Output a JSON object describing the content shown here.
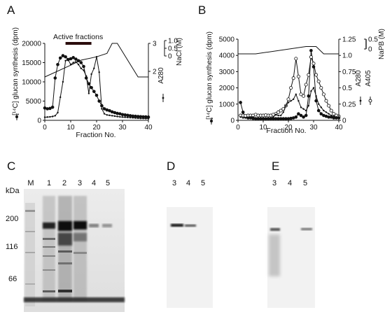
{
  "panels": {
    "A": "A",
    "B": "B",
    "C": "C",
    "D": "D",
    "E": "E"
  },
  "chart_data": [
    {
      "type": "line",
      "panel": "A",
      "xlabel": "Fraction No.",
      "ylabel_left": "[¹⁴C] glucan synthesis (dpm)",
      "ylabel_right_inner": "A280",
      "ylabel_right_outer": "NaCl (M)",
      "annotation": "Active fractions",
      "active_range": [
        8,
        18
      ],
      "xlim": [
        0,
        40
      ],
      "ylim": [
        0,
        20000
      ],
      "x_ticks": [
        0,
        10,
        20,
        30,
        40
      ],
      "y_ticks": [
        0,
        5000,
        10000,
        15000,
        20000
      ],
      "y_tick_labels": [
        "0",
        "5000",
        "10000",
        "15000",
        "20000"
      ],
      "a280_ticks": [
        2,
        3
      ],
      "a280_range": [
        1.55,
        3.0
      ],
      "nacl_ticks": [
        "0",
        "0.5",
        "1.0"
      ],
      "nacl_range": [
        0,
        1.0
      ],
      "series": [
        {
          "marker": "filled-circle",
          "x": [
            0,
            1,
            2,
            3,
            4,
            5,
            6,
            7,
            8,
            9,
            10,
            11,
            12,
            13,
            14,
            15,
            16,
            17,
            18,
            19,
            20,
            21,
            22,
            23,
            24,
            25,
            26,
            27,
            28,
            29,
            30,
            31,
            32,
            33,
            34,
            35,
            36,
            37,
            38,
            39,
            40
          ],
          "values": [
            3200,
            3000,
            3100,
            3400,
            11000,
            14500,
            16200,
            16800,
            16500,
            15800,
            16000,
            16300,
            15900,
            15500,
            15000,
            14000,
            11000,
            9500,
            8500,
            7500,
            6500,
            5000,
            3800,
            3000,
            2700,
            2500,
            2200,
            2000,
            1800,
            1700,
            1500,
            1400,
            1300,
            1200,
            1100,
            1050,
            1000,
            950,
            900,
            900,
            850
          ]
        },
        {
          "marker": "small-dot",
          "x": [
            0,
            1,
            2,
            3,
            4,
            5,
            6,
            7,
            8,
            9,
            10,
            11,
            12,
            13,
            14,
            15,
            16,
            17,
            18,
            19,
            20,
            21,
            22,
            23,
            24,
            25,
            26,
            27,
            28,
            29,
            30,
            31,
            32,
            33,
            34,
            35,
            36,
            37,
            38,
            39,
            40
          ],
          "values": [
            800,
            850,
            900,
            1000,
            1200,
            2000,
            6000,
            10000,
            15500,
            15800,
            14500,
            15000,
            15200,
            14500,
            13500,
            13000,
            11500,
            7000,
            12000,
            13500,
            16500,
            12500,
            3000,
            1700,
            1400,
            1300,
            1200,
            1100,
            1000,
            900,
            850,
            800,
            750,
            700,
            650,
            600,
            550,
            500,
            480,
            450,
            430
          ]
        }
      ],
      "gradient": {
        "x": [
          0,
          10,
          14,
          20,
          24,
          26,
          28,
          36,
          40
        ],
        "values": [
          0.0,
          0.35,
          0.5,
          0.6,
          0.7,
          1.0,
          1.0,
          0.0,
          0.0
        ]
      }
    },
    {
      "type": "line",
      "panel": "B",
      "xlabel": "Fraction No.",
      "ylabel_left": "[¹⁴C] glucan synthesis (dpm)",
      "ylabel_right_inner": "A280",
      "ylabel_right_outer": "A405",
      "ylabel_right_far": "NaPB (M)",
      "xlim": [
        0,
        40
      ],
      "ylim": [
        0,
        5000
      ],
      "x_ticks": [
        0,
        10,
        20,
        30,
        40
      ],
      "y_ticks": [
        0,
        1000,
        2000,
        3000,
        4000,
        5000
      ],
      "y_tick_labels": [
        "0",
        "1000",
        "2000",
        "3000",
        "4000",
        "5000"
      ],
      "abs_ticks": [
        "0",
        "0.25",
        "0.5",
        "0.75",
        "1.0",
        "1.25"
      ],
      "abs_range": [
        0,
        1.25
      ],
      "napb_ticks": [
        "0",
        "0.5"
      ],
      "napb_range": [
        0,
        0.5
      ],
      "series": [
        {
          "marker": "filled-circle",
          "x": [
            1,
            2,
            3,
            4,
            5,
            6,
            7,
            8,
            9,
            10,
            11,
            12,
            13,
            14,
            15,
            16,
            17,
            18,
            19,
            20,
            21,
            22,
            23,
            24,
            25,
            26,
            27,
            28,
            29,
            30,
            31,
            32,
            33,
            34,
            35,
            36,
            37,
            38,
            39,
            40
          ],
          "values": [
            1100,
            500,
            200,
            150,
            150,
            120,
            100,
            100,
            100,
            100,
            100,
            100,
            100,
            100,
            100,
            100,
            100,
            100,
            100,
            100,
            120,
            150,
            200,
            400,
            300,
            200,
            300,
            1500,
            4300,
            3300,
            1200,
            600,
            400,
            300,
            250,
            200,
            200,
            150,
            150,
            150
          ]
        },
        {
          "marker": "open-circle",
          "x": [
            1,
            2,
            3,
            4,
            5,
            6,
            7,
            8,
            9,
            10,
            11,
            12,
            13,
            14,
            15,
            16,
            17,
            18,
            19,
            20,
            21,
            22,
            23,
            24,
            25,
            26,
            27,
            28,
            29,
            30,
            31,
            32,
            33,
            34,
            35,
            36,
            37,
            38,
            39,
            40
          ],
          "values": [
            300,
            300,
            280,
            300,
            300,
            300,
            350,
            300,
            300,
            300,
            320,
            300,
            300,
            350,
            400,
            500,
            600,
            700,
            900,
            1300,
            2000,
            2600,
            3800,
            2700,
            1600,
            1500,
            2200,
            2800,
            3900,
            3500,
            2800,
            2400,
            2000,
            1600,
            1200,
            900,
            600,
            400,
            300,
            250
          ]
        },
        {
          "marker": "small-dot",
          "x": [
            1,
            2,
            3,
            4,
            5,
            6,
            7,
            8,
            9,
            10,
            11,
            12,
            13,
            14,
            15,
            16,
            17,
            18,
            19,
            20,
            21,
            22,
            23,
            24,
            25,
            26,
            27,
            28,
            29,
            30,
            31,
            32,
            33,
            34,
            35,
            36,
            37,
            38,
            39,
            40
          ],
          "values": [
            200,
            150,
            150,
            150,
            200,
            200,
            150,
            150,
            150,
            150,
            150,
            150,
            150,
            200,
            350,
            300,
            300,
            500,
            900,
            1100,
            1200,
            1300,
            1600,
            1200,
            800,
            700,
            600,
            900,
            1800,
            2000,
            1500,
            1000,
            800,
            600,
            500,
            400,
            300,
            250,
            200,
            200
          ]
        }
      ],
      "gradient": {
        "x": [
          0,
          7,
          27,
          31,
          34,
          40
        ],
        "values": [
          0.0,
          0.0,
          0.5,
          0.5,
          0.0,
          0.0
        ]
      }
    }
  ],
  "gelC": {
    "kda_label": "kDa",
    "lanes": [
      "M",
      "1",
      "2",
      "3",
      "4",
      "5"
    ],
    "markers": [
      "200",
      "116",
      "66"
    ]
  },
  "gelD": {
    "lanes": [
      "3",
      "4",
      "5"
    ]
  },
  "gelE": {
    "lanes": [
      "3",
      "4",
      "5"
    ]
  }
}
